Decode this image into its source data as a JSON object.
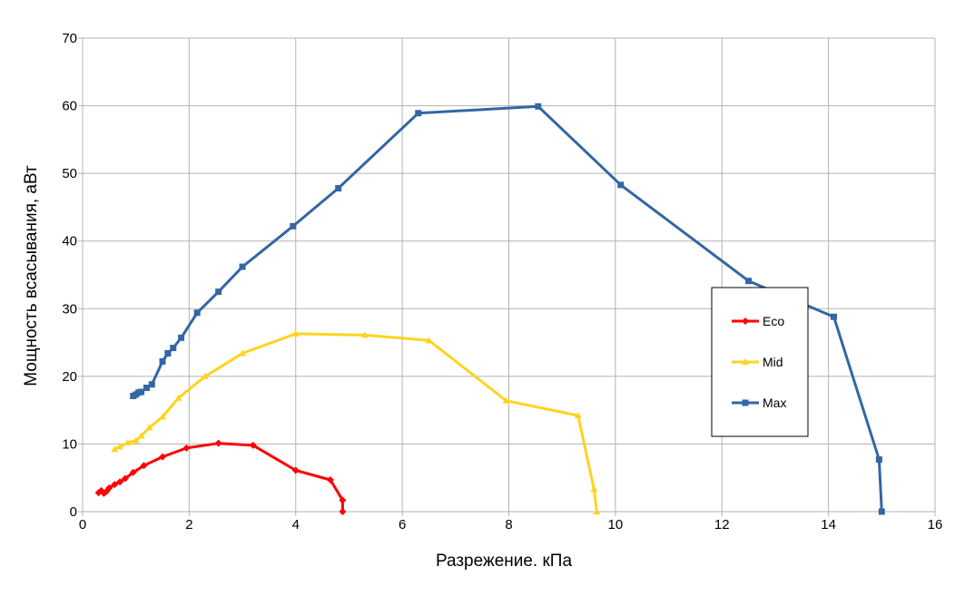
{
  "chart_data": {
    "type": "line",
    "xlabel": "Разрежение. кПа",
    "ylabel": "Мощность всасывания, аВт",
    "xlim": [
      0,
      16
    ],
    "ylim": [
      0,
      70
    ],
    "x_ticks": [
      "0",
      "2",
      "4",
      "6",
      "8",
      "10",
      "12",
      "14",
      "16"
    ],
    "y_ticks": [
      "0",
      "10",
      "20",
      "30",
      "40",
      "50",
      "60",
      "70"
    ],
    "grid": true,
    "legend_position": "right",
    "series": [
      {
        "name": "Eco",
        "color": "#ff0000",
        "marker": "diamond",
        "points": [
          [
            0.3,
            2.8
          ],
          [
            0.35,
            3.1
          ],
          [
            0.4,
            2.7
          ],
          [
            0.45,
            3.0
          ],
          [
            0.5,
            3.5
          ],
          [
            0.6,
            4.0
          ],
          [
            0.7,
            4.4
          ],
          [
            0.8,
            4.9
          ],
          [
            0.95,
            5.8
          ],
          [
            1.15,
            6.8
          ],
          [
            1.5,
            8.1
          ],
          [
            1.95,
            9.4
          ],
          [
            2.55,
            10.1
          ],
          [
            3.2,
            9.8
          ],
          [
            4.0,
            6.1
          ],
          [
            4.65,
            4.7
          ],
          [
            4.88,
            1.7
          ],
          [
            4.88,
            0.0
          ]
        ]
      },
      {
        "name": "Mid",
        "color": "#ffd320",
        "marker": "triangle",
        "points": [
          [
            0.6,
            9.2
          ],
          [
            0.7,
            9.6
          ],
          [
            0.85,
            10.2
          ],
          [
            1.0,
            10.5
          ],
          [
            1.1,
            11.2
          ],
          [
            1.25,
            12.4
          ],
          [
            1.5,
            14.0
          ],
          [
            1.8,
            16.8
          ],
          [
            2.3,
            20.0
          ],
          [
            3.0,
            23.4
          ],
          [
            4.0,
            26.3
          ],
          [
            5.3,
            26.1
          ],
          [
            6.5,
            25.3
          ],
          [
            7.95,
            16.4
          ],
          [
            9.3,
            14.2
          ],
          [
            9.6,
            3.3
          ],
          [
            9.65,
            0.0
          ]
        ]
      },
      {
        "name": "Max",
        "color": "#3366a4",
        "marker": "square",
        "points": [
          [
            0.95,
            17.1
          ],
          [
            1.0,
            17.3
          ],
          [
            1.05,
            17.6
          ],
          [
            1.1,
            17.7
          ],
          [
            1.2,
            18.3
          ],
          [
            1.3,
            18.8
          ],
          [
            1.5,
            22.2
          ],
          [
            1.6,
            23.4
          ],
          [
            1.7,
            24.2
          ],
          [
            1.85,
            25.7
          ],
          [
            2.15,
            29.4
          ],
          [
            2.55,
            32.5
          ],
          [
            3.0,
            36.2
          ],
          [
            3.95,
            42.2
          ],
          [
            4.8,
            47.8
          ],
          [
            6.3,
            58.9
          ],
          [
            8.55,
            59.9
          ],
          [
            10.1,
            48.3
          ],
          [
            12.5,
            34.1
          ],
          [
            14.1,
            28.8
          ],
          [
            14.95,
            7.7
          ],
          [
            15.0,
            0.0
          ]
        ]
      }
    ]
  }
}
